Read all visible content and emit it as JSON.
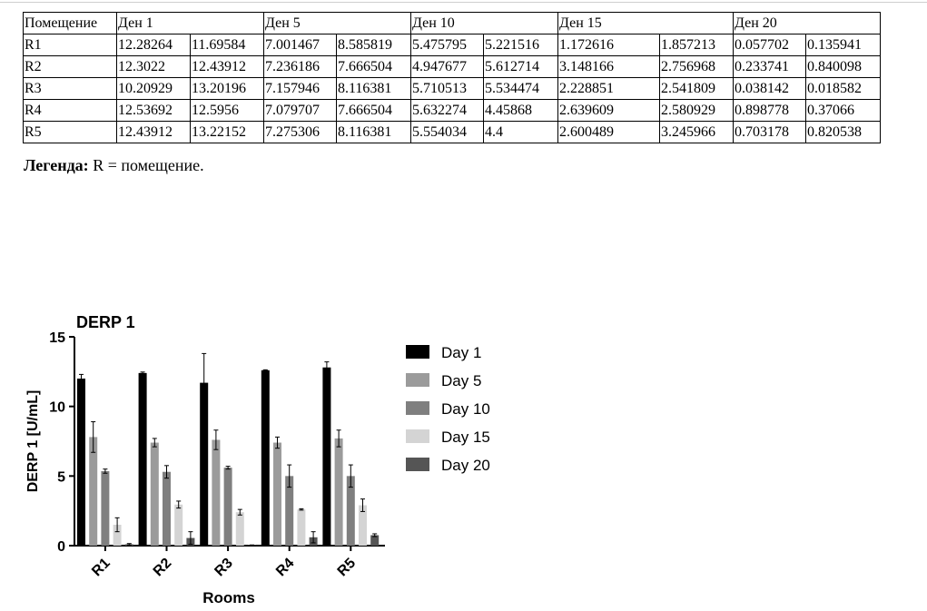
{
  "table": {
    "header": [
      "Помещение",
      "Ден 1",
      "Ден 5",
      "Ден 10",
      "Ден 15",
      "Ден 20"
    ],
    "rows": [
      {
        "room": "R1",
        "values": [
          "12.28264",
          "11.69584",
          "7.001467",
          "8.585819",
          "5.475795",
          "5.221516",
          "1.172616",
          "1.857213",
          "0.057702",
          "0.135941"
        ]
      },
      {
        "room": "R2",
        "values": [
          "12.3022",
          "12.43912",
          "7.236186",
          "7.666504",
          "4.947677",
          "5.612714",
          "3.148166",
          "2.756968",
          "0.233741",
          "0.840098"
        ]
      },
      {
        "room": "R3",
        "values": [
          "10.20929",
          "13.20196",
          "7.157946",
          "8.116381",
          "5.710513",
          "5.534474",
          "2.228851",
          "2.541809",
          "0.038142",
          "0.018582"
        ]
      },
      {
        "room": "R4",
        "values": [
          "12.53692",
          "12.5956",
          "7.079707",
          "7.666504",
          "5.632274",
          "4.45868",
          "2.639609",
          "2.580929",
          "0.898778",
          "0.37066"
        ]
      },
      {
        "room": "R5",
        "values": [
          "12.43912",
          "13.22152",
          "7.275306",
          "8.116381",
          "5.554034",
          "4.4",
          "2.600489",
          "3.245966",
          "0.703178",
          "0.820538"
        ]
      }
    ]
  },
  "legend_note": {
    "label": "Легенда:",
    "text": "R = помещение."
  },
  "chart_data": {
    "type": "bar",
    "title": "DERP 1",
    "xlabel": "Rooms",
    "ylabel": "DERP 1 [U/mL]",
    "ylim": [
      0,
      15
    ],
    "yticks": [
      0,
      5,
      10,
      15
    ],
    "categories": [
      "R1",
      "R2",
      "R3",
      "R4",
      "R5"
    ],
    "legend_position": "right",
    "series": [
      {
        "name": "Day 1",
        "color": "#000000",
        "values": [
          12.0,
          12.4,
          11.7,
          12.6,
          12.8
        ],
        "errors": [
          0.3,
          0.07,
          2.1,
          0.03,
          0.4
        ]
      },
      {
        "name": "Day 5",
        "color": "#9b9b9b",
        "values": [
          7.8,
          7.4,
          7.6,
          7.4,
          7.7
        ],
        "errors": [
          1.1,
          0.3,
          0.7,
          0.4,
          0.6
        ]
      },
      {
        "name": "Day 10",
        "color": "#7f7f7f",
        "values": [
          5.35,
          5.3,
          5.6,
          5.0,
          5.0
        ],
        "errors": [
          0.15,
          0.45,
          0.1,
          0.8,
          0.8
        ]
      },
      {
        "name": "Day 15",
        "color": "#d4d4d4",
        "values": [
          1.5,
          2.95,
          2.4,
          2.6,
          2.9
        ],
        "errors": [
          0.5,
          0.25,
          0.2,
          0.05,
          0.45
        ]
      },
      {
        "name": "Day 20",
        "color": "#555555",
        "values": [
          0.1,
          0.55,
          0.03,
          0.6,
          0.75
        ],
        "errors": [
          0.05,
          0.45,
          0.02,
          0.4,
          0.1
        ]
      }
    ]
  }
}
